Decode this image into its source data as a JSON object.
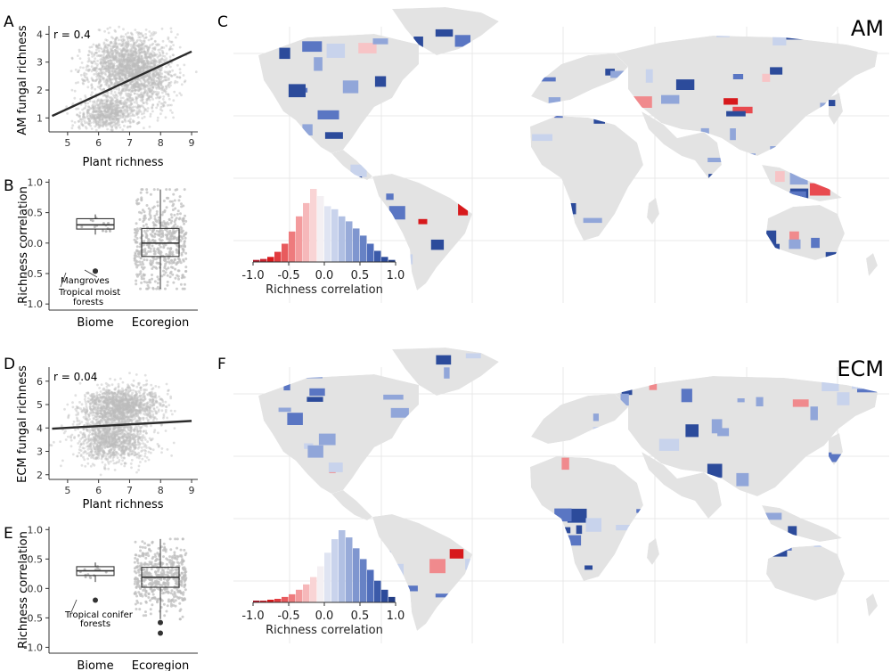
{
  "panels": {
    "A": {
      "letter": "A",
      "annotation": "r = 0.4",
      "xlabel": "Plant richness",
      "ylabel": "AM fungal richness",
      "xticks": [
        "5",
        "6",
        "7",
        "8",
        "9"
      ],
      "yticks": [
        "1",
        "2",
        "3",
        "4"
      ]
    },
    "B": {
      "letter": "B",
      "ylabel": "Richness correlation",
      "categories": [
        "Biome",
        "Ecoregion"
      ],
      "yticks": [
        "1.0",
        "0.5",
        "0.0",
        "-0.5",
        "-1.0"
      ],
      "annot1": "Mangroves",
      "annot2a": "Tropical moist",
      "annot2b": "forests"
    },
    "C": {
      "letter": "C",
      "title": "AM",
      "legend_label": "Richness correlation",
      "legend_ticks": [
        "-1.0",
        "-0.5",
        "0.0",
        "0.5",
        "1.0"
      ]
    },
    "D": {
      "letter": "D",
      "annotation": "r = 0.04",
      "xlabel": "Plant richness",
      "ylabel": "ECM fungal richness",
      "xticks": [
        "5",
        "6",
        "7",
        "8",
        "9"
      ],
      "yticks": [
        "2",
        "3",
        "4",
        "5",
        "6"
      ]
    },
    "E": {
      "letter": "E",
      "ylabel": "Richness correlation",
      "categories": [
        "Biome",
        "Ecoregion"
      ],
      "yticks": [
        "1.0",
        "0.5",
        "0.0",
        "-0.5",
        "-1.0"
      ],
      "annot1a": "Tropical conifer",
      "annot1b": "forests"
    },
    "F": {
      "letter": "F",
      "title": "ECM",
      "legend_label": "Richness correlation",
      "legend_ticks": [
        "-1.0",
        "-0.5",
        "0.0",
        "0.5",
        "1.0"
      ]
    }
  },
  "colors": {
    "red": "#d7191c",
    "blue": "#2c4b9b",
    "grey_land": "#e3e3e3",
    "point": "#bdbdbd"
  },
  "chart_data": [
    {
      "type": "scatter",
      "id": "A",
      "title": "",
      "xlabel": "Plant richness",
      "ylabel": "AM fungal richness",
      "xlim": [
        4.4,
        9.2
      ],
      "ylim": [
        0.5,
        4.3
      ],
      "r": 0.4,
      "fit_line": {
        "x": [
          4.5,
          9.0
        ],
        "y": [
          1.07,
          3.38
        ]
      }
    },
    {
      "type": "box",
      "id": "B",
      "ylabel": "Richness correlation",
      "categories": [
        "Biome",
        "Ecoregion"
      ],
      "ylim": [
        -1.1,
        1.05
      ],
      "boxes": [
        {
          "category": "Biome",
          "min": 0.14,
          "q1": 0.23,
          "median": 0.3,
          "q3": 0.4,
          "max": 0.47,
          "outliers": [
            -0.46,
            -0.46
          ]
        },
        {
          "category": "Ecoregion",
          "min": -0.75,
          "q1": -0.22,
          "median": 0.0,
          "q3": 0.24,
          "max": 0.88,
          "outliers": []
        }
      ]
    },
    {
      "type": "bar",
      "id": "C-legend",
      "xlabel": "Richness correlation",
      "xlim": [
        -1.0,
        1.0
      ],
      "categories": [
        "-0.95",
        "-0.85",
        "-0.75",
        "-0.65",
        "-0.55",
        "-0.45",
        "-0.35",
        "-0.25",
        "-0.15",
        "-0.05",
        "0.05",
        "0.15",
        "0.25",
        "0.35",
        "0.45",
        "0.55",
        "0.65",
        "0.75",
        "0.85",
        "0.95"
      ],
      "values": [
        2,
        3,
        5,
        10,
        18,
        30,
        45,
        58,
        72,
        65,
        55,
        52,
        45,
        40,
        33,
        26,
        18,
        11,
        5,
        2
      ]
    },
    {
      "type": "scatter",
      "id": "D",
      "xlabel": "Plant richness",
      "ylabel": "ECM fungal richness",
      "xlim": [
        4.4,
        9.2
      ],
      "ylim": [
        1.8,
        6.6
      ],
      "r": 0.04,
      "fit_line": {
        "x": [
          4.5,
          9.0
        ],
        "y": [
          3.97,
          4.3
        ]
      }
    },
    {
      "type": "box",
      "id": "E",
      "ylabel": "Richness correlation",
      "categories": [
        "Biome",
        "Ecoregion"
      ],
      "ylim": [
        -1.1,
        1.05
      ],
      "boxes": [
        {
          "category": "Biome",
          "min": 0.11,
          "q1": 0.22,
          "median": 0.3,
          "q3": 0.37,
          "max": 0.44,
          "outliers": [
            -0.2
          ]
        },
        {
          "category": "Ecoregion",
          "min": -0.52,
          "q1": 0.02,
          "median": 0.19,
          "q3": 0.36,
          "max": 0.84,
          "outliers": [
            -0.58,
            -0.76
          ]
        }
      ]
    },
    {
      "type": "bar",
      "id": "F-legend",
      "xlabel": "Richness correlation",
      "xlim": [
        -1.0,
        1.0
      ],
      "categories": [
        "-0.95",
        "-0.85",
        "-0.75",
        "-0.65",
        "-0.55",
        "-0.45",
        "-0.35",
        "-0.25",
        "-0.15",
        "-0.05",
        "0.05",
        "0.15",
        "0.25",
        "0.35",
        "0.45",
        "0.55",
        "0.65",
        "0.75",
        "0.85",
        "0.95"
      ],
      "values": [
        2,
        2,
        3,
        4,
        6,
        9,
        14,
        20,
        28,
        40,
        55,
        70,
        80,
        72,
        60,
        48,
        36,
        24,
        14,
        6
      ]
    }
  ]
}
